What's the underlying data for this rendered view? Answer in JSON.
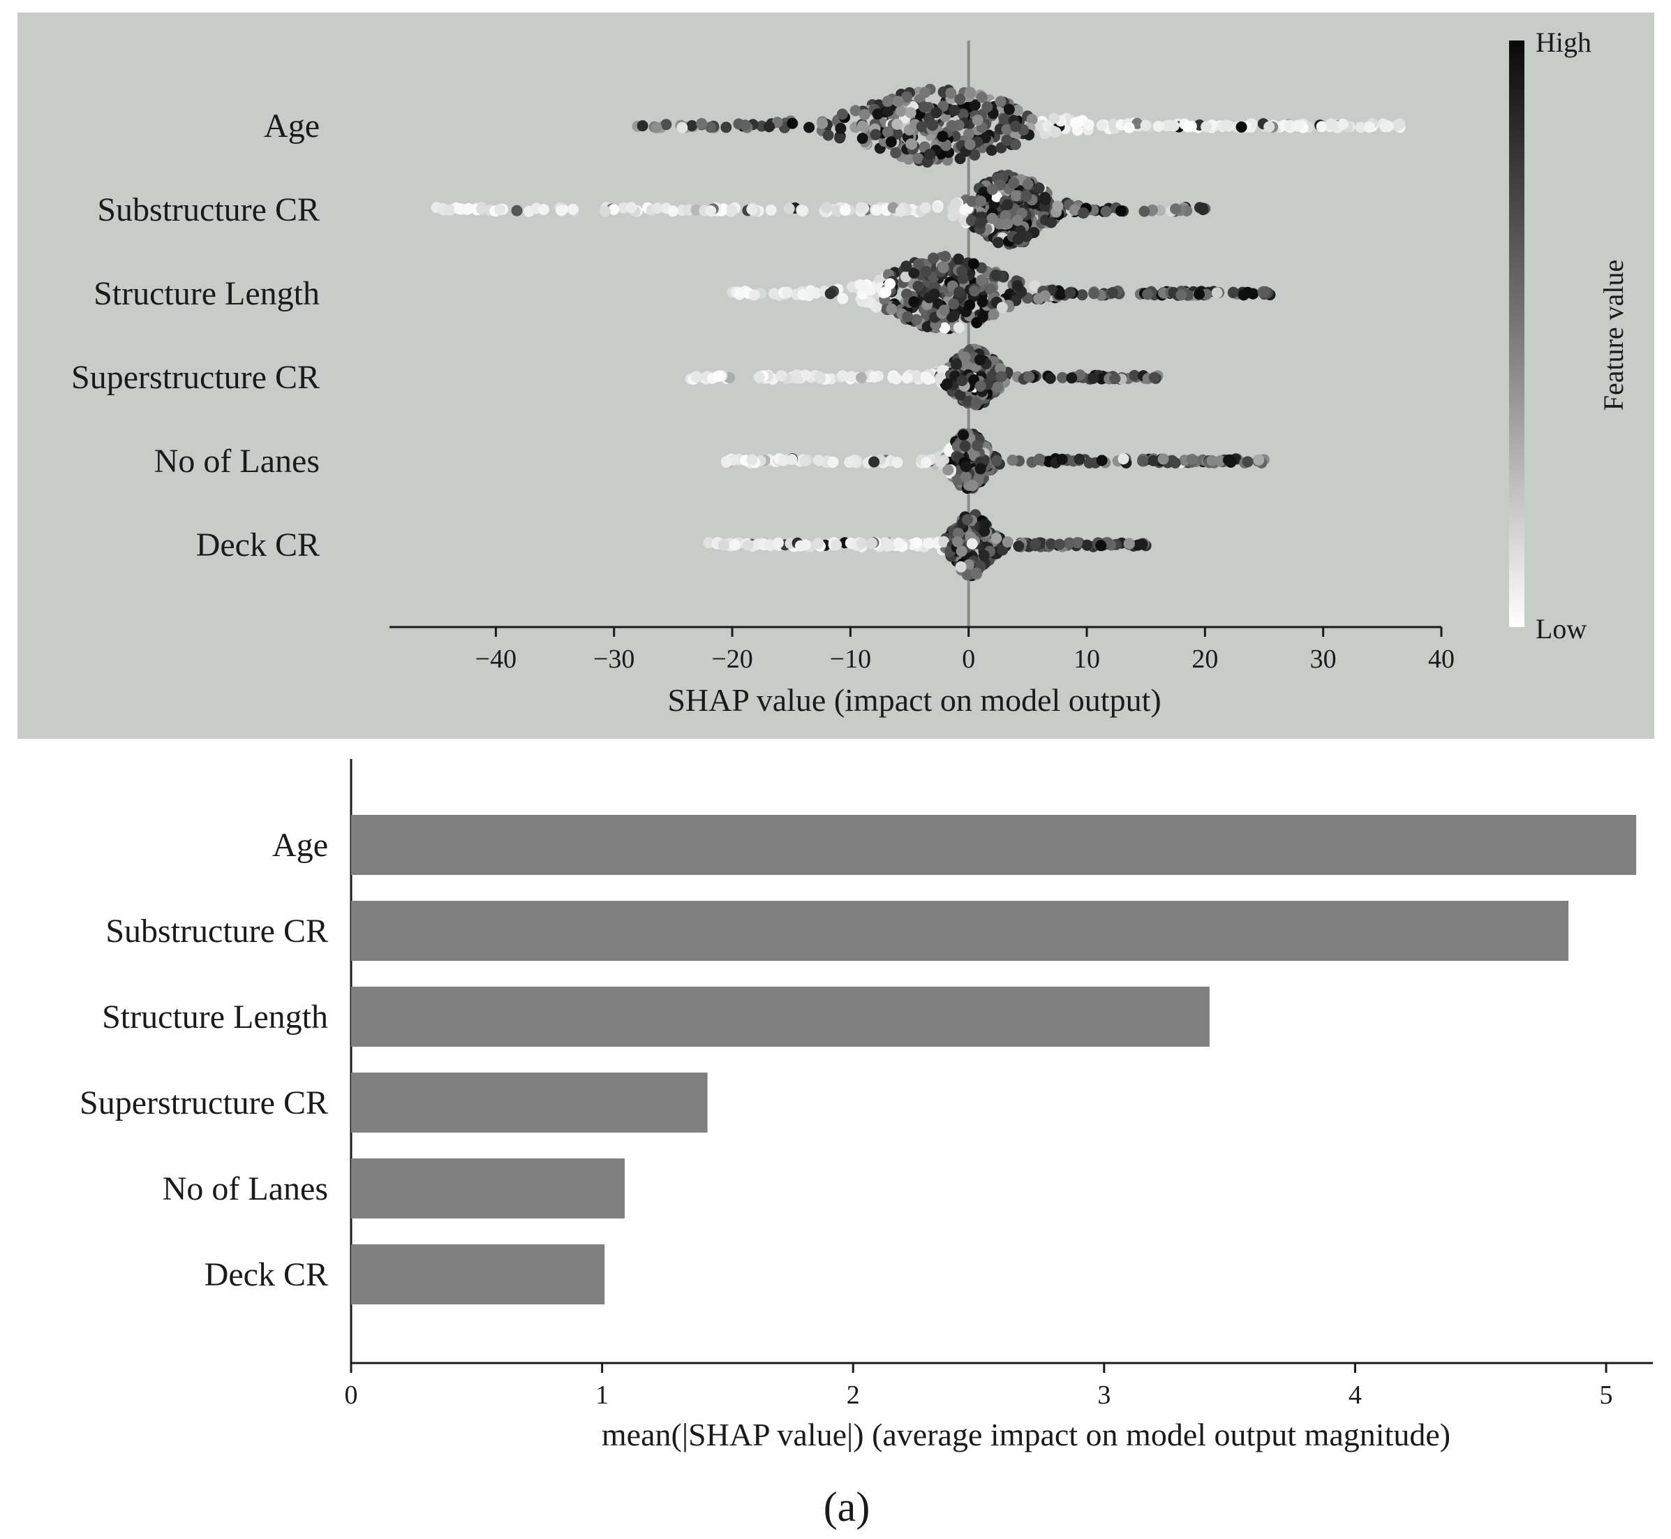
{
  "figure_caption": "(a)",
  "chart_data": [
    {
      "type": "scatter",
      "subtype": "shap-beeswarm",
      "features": [
        "Age",
        "Substructure CR",
        "Structure Length",
        "Superstructure CR",
        "No of Lanes",
        "Deck CR"
      ],
      "xlabel": "SHAP value (impact on model output)",
      "xlim": [
        -49,
        40
      ],
      "xticks": [
        -40,
        -30,
        -20,
        -10,
        0,
        10,
        20,
        30,
        40
      ],
      "colorbar": {
        "label": "Feature value",
        "high_label": "High",
        "low_label": "Low",
        "high_color": "#0a0a0a",
        "low_color": "#ffffff"
      },
      "background_color": "#c7ccc9",
      "series": [
        {
          "feature": "Age",
          "min": -28,
          "max": 36.5,
          "core_range": [
            -8,
            3
          ],
          "spread": 0.42,
          "trend": "low-right"
        },
        {
          "feature": "Substructure CR",
          "min": -45,
          "max": 20,
          "core_range": [
            1,
            6
          ],
          "spread": 0.4,
          "trend": "low-left"
        },
        {
          "feature": "Structure Length",
          "min": -20,
          "max": 25.5,
          "core_range": [
            -6,
            2
          ],
          "spread": 0.42,
          "trend": "low-left"
        },
        {
          "feature": "Superstructure CR",
          "min": -23.5,
          "max": 16,
          "core_range": [
            -1,
            2
          ],
          "spread": 0.32,
          "trend": "low-left"
        },
        {
          "feature": "No of Lanes",
          "min": -20.5,
          "max": 25,
          "core_range": [
            -0.5,
            0.5
          ],
          "spread": 0.32,
          "trend": "low-left"
        },
        {
          "feature": "Deck CR",
          "min": -22,
          "max": 15,
          "core_range": [
            -1,
            1.5
          ],
          "spread": 0.35,
          "trend": "low-left"
        }
      ]
    },
    {
      "type": "bar",
      "orientation": "horizontal",
      "categories": [
        "Age",
        "Substructure CR",
        "Structure Length",
        "Superstructure CR",
        "No of Lanes",
        "Deck CR"
      ],
      "values": [
        5.12,
        4.85,
        3.42,
        1.42,
        1.09,
        1.01
      ],
      "xlabel": "mean(|SHAP value|) (average impact on model output magnitude)",
      "xlim": [
        0,
        5.15
      ],
      "xticks": [
        0,
        1,
        2,
        3,
        4,
        5
      ],
      "bar_color": "#808080"
    }
  ]
}
